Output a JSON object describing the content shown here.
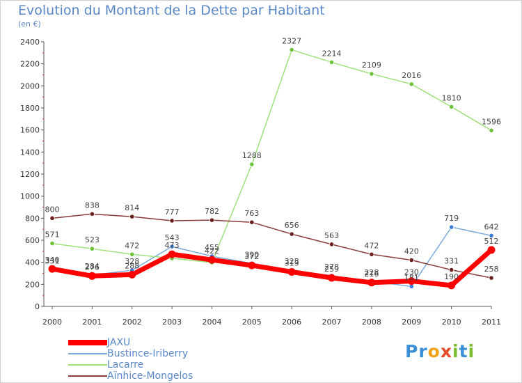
{
  "title": "Evolution du Montant de la Dette par Habitant",
  "subtitle": "(en €)",
  "logo": {
    "text": "Proxiti",
    "letters": [
      {
        "ch": "P",
        "color": "#3a8fd6"
      },
      {
        "ch": "r",
        "color": "#3a8fd6"
      },
      {
        "ch": "o",
        "color": "#f0a21a"
      },
      {
        "ch": "x",
        "color": "#e34b2a"
      },
      {
        "ch": "i",
        "color": "#7bbf2e"
      },
      {
        "ch": "t",
        "color": "#3a8fd6"
      },
      {
        "ch": "i",
        "color": "#7bbf2e"
      }
    ]
  },
  "chart_data": {
    "type": "line",
    "title": "Evolution du Montant de la Dette par Habitant",
    "subtitle": "(en €)",
    "xlabel": "",
    "ylabel": "",
    "ylim": [
      0,
      2400
    ],
    "yticks": [
      0,
      200,
      400,
      600,
      800,
      1000,
      1200,
      1400,
      1600,
      1800,
      2000,
      2200,
      2400
    ],
    "x": [
      "2000",
      "2001",
      "2002",
      "2003",
      "2004",
      "2005",
      "2006",
      "2007",
      "2008",
      "2009",
      "2010",
      "2011"
    ],
    "grid": false,
    "legend_position": "bottom-left",
    "series": [
      {
        "name": "JAXU",
        "color": "#ff0000",
        "marker_color": "#ff0000",
        "line_width": 7,
        "values": [
          340,
          276,
          288,
          473,
          422,
          372,
          313,
          259,
          216,
          230,
          190,
          512
        ],
        "labels": [
          "340",
          "276",
          "288",
          "473",
          "422",
          "372",
          "313",
          "259",
          "216",
          "230",
          "190",
          "512"
        ]
      },
      {
        "name": "Bustince-Iriberry",
        "color": "#7aaad8",
        "marker_color": "#3a7bd5",
        "line_width": 1.5,
        "values": [
          331,
          284,
          328,
          543,
          455,
          390,
          328,
          278,
          228,
          181,
          719,
          642
        ],
        "labels": [
          "331",
          "284",
          "328",
          "543",
          "455",
          "390",
          "328",
          "278",
          "228",
          "181",
          "719",
          "642"
        ]
      },
      {
        "name": "Lacarre",
        "color": "#9ee07a",
        "marker_color": "#6cc23a",
        "line_width": 1.5,
        "values": [
          571,
          523,
          472,
          436,
          398,
          1288,
          2327,
          2214,
          2109,
          2016,
          1810,
          1596
        ],
        "labels": [
          "571",
          "523",
          "472",
          "",
          "",
          "1288",
          "2327",
          "2214",
          "2109",
          "2016",
          "1810",
          "1596"
        ]
      },
      {
        "name": "Aïnhice-Mongelos",
        "color": "#8b3a3a",
        "marker_color": "#6b1f1f",
        "line_width": 1.5,
        "values": [
          800,
          838,
          814,
          777,
          782,
          763,
          656,
          563,
          472,
          420,
          331,
          258
        ],
        "labels": [
          "800",
          "838",
          "814",
          "777",
          "782",
          "763",
          "656",
          "563",
          "472",
          "420",
          "331",
          "258"
        ]
      }
    ]
  }
}
